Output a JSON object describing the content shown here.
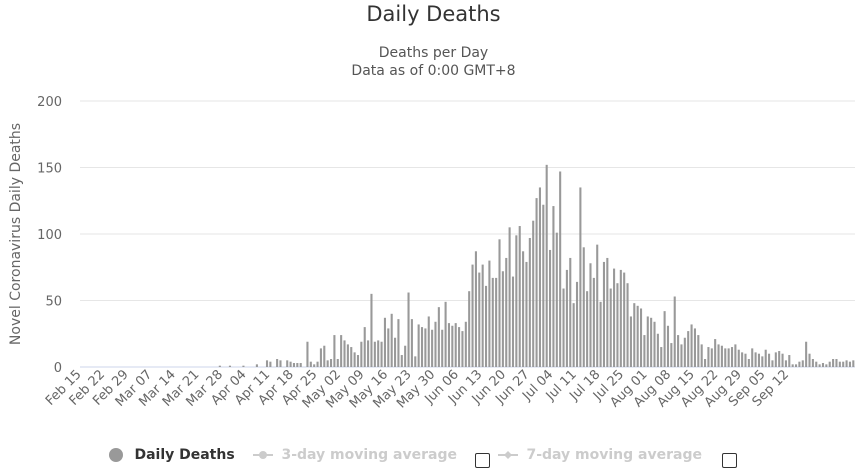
{
  "title": "Daily Deaths",
  "subtitle_line1": "Deaths per Day",
  "subtitle_line2": "Data as of 0:00 GMT+8",
  "legend": {
    "item1": "Daily Deaths",
    "item2": "3-day moving average",
    "item3": "7-day moving average"
  },
  "colors": {
    "bar": "#999999",
    "grid": "#e6e6e6",
    "axis_line": "#ccd6eb"
  },
  "chart_data": {
    "type": "bar",
    "title": "Daily Deaths",
    "subtitle": "Deaths per Day / Data as of 0:00 GMT+8",
    "ylabel": "Novel Coronavirus Daily Deaths",
    "xlabel": "",
    "ylim": [
      0,
      200
    ],
    "yticks": [
      0,
      50,
      100,
      150,
      200
    ],
    "xticks": [
      "Feb 15",
      "Feb 22",
      "Feb 29",
      "Mar 07",
      "Mar 14",
      "Mar 21",
      "Mar 28",
      "Apr 04",
      "Apr 11",
      "Apr 18",
      "Apr 25",
      "May 02",
      "May 09",
      "May 16",
      "May 23",
      "May 30",
      "Jun 06",
      "Jun 13",
      "Jun 20",
      "Jun 27",
      "Jul 04",
      "Jul 11",
      "Jul 18",
      "Jul 25",
      "Aug 01",
      "Aug 08",
      "Aug 15",
      "Aug 22",
      "Aug 29",
      "Sep 05",
      "Sep 12"
    ],
    "start_date": "Feb 15",
    "series": [
      {
        "name": "Daily Deaths",
        "values": [
          0,
          0,
          0,
          0,
          0,
          0,
          0,
          0,
          0,
          0,
          0,
          0,
          0,
          0,
          0,
          0,
          0,
          0,
          0,
          0,
          0,
          0,
          0,
          0,
          0,
          0,
          0,
          0,
          0,
          0,
          0,
          0,
          0,
          0,
          0,
          0,
          0,
          0,
          0,
          0,
          0,
          1,
          0,
          0,
          1,
          0,
          0,
          0,
          1,
          0,
          0,
          0,
          2,
          0,
          0,
          5,
          4,
          0,
          6,
          5,
          0,
          5,
          4,
          3,
          3,
          3,
          0,
          19,
          4,
          2,
          4,
          14,
          16,
          5,
          6,
          24,
          6,
          24,
          20,
          17,
          15,
          11,
          9,
          19,
          30,
          20,
          55,
          19,
          20,
          19,
          37,
          29,
          40,
          22,
          36,
          9,
          16,
          56,
          36,
          8,
          32,
          30,
          29,
          38,
          28,
          34,
          45,
          28,
          49,
          33,
          31,
          33,
          30,
          27,
          34,
          57,
          77,
          87,
          71,
          77,
          61,
          80,
          67,
          67,
          96,
          72,
          82,
          105,
          68,
          99,
          106,
          87,
          79,
          97,
          110,
          127,
          135,
          122,
          152,
          88,
          121,
          101,
          147,
          59,
          73,
          82,
          48,
          64,
          135,
          90,
          57,
          78,
          67,
          92,
          49,
          79,
          82,
          59,
          74,
          63,
          73,
          71,
          63,
          38,
          48,
          46,
          44,
          24,
          38,
          37,
          34,
          25,
          15,
          42,
          31,
          18,
          53,
          24,
          17,
          22,
          27,
          32,
          29,
          24,
          17,
          6,
          15,
          14,
          21,
          17,
          16,
          14,
          14,
          15,
          17,
          13,
          11,
          10,
          6,
          14,
          11,
          10,
          8,
          13,
          10,
          5,
          11,
          12,
          10,
          5,
          9,
          2,
          2,
          4,
          5,
          19,
          10,
          6,
          4,
          2,
          3,
          2,
          4,
          6,
          6,
          4,
          4,
          5,
          4,
          5
        ]
      }
    ]
  }
}
